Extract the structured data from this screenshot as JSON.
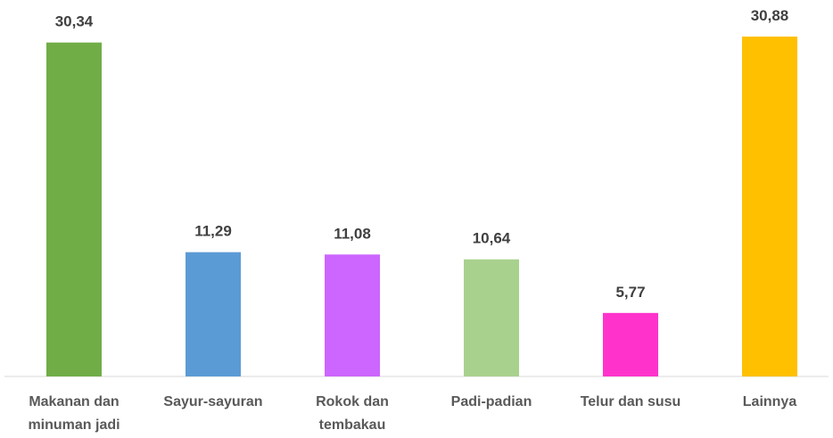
{
  "chart_data": {
    "type": "bar",
    "categories": [
      "Makanan dan minuman jadi",
      "Sayur-sayuran",
      "Rokok dan tembakau",
      "Padi-padian",
      "Telur dan susu",
      "Lainnya"
    ],
    "values": [
      30.34,
      11.29,
      11.08,
      10.64,
      5.77,
      30.88
    ],
    "value_labels": [
      "30,34",
      "11,29",
      "11,08",
      "10,64",
      "5,77",
      "30,88"
    ],
    "colors": [
      "#70ad47",
      "#5b9bd5",
      "#cc66ff",
      "#a9d18e",
      "#ff33cc",
      "#ffc000"
    ]
  }
}
